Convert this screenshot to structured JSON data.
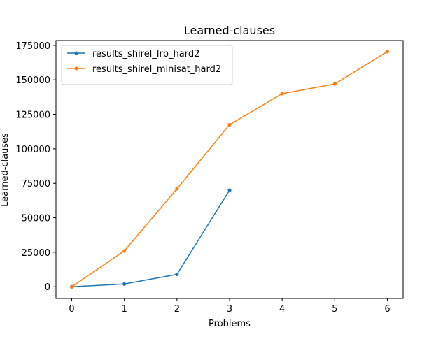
{
  "chart_data": {
    "type": "line",
    "title": "Learned-clauses",
    "xlabel": "Problems",
    "ylabel": "Learned-clauses",
    "x_ticks": [
      0,
      1,
      2,
      3,
      4,
      5,
      6
    ],
    "y_ticks": [
      0,
      25000,
      50000,
      75000,
      100000,
      125000,
      150000,
      175000
    ],
    "xlim": [
      -0.3,
      6.3
    ],
    "ylim": [
      -8500,
      178500
    ],
    "grid": false,
    "legend_position": "top-left",
    "series": [
      {
        "name": "results_shirel_lrb_hard2",
        "color": "#1f77b4",
        "marker": "dot",
        "x": [
          0,
          1,
          2,
          3
        ],
        "y": [
          0,
          2000,
          9000,
          70000
        ]
      },
      {
        "name": "results_shirel_minisat_hard2",
        "color": "#ff7f0e",
        "marker": "dot",
        "x": [
          0,
          1,
          2,
          3,
          4,
          5,
          6
        ],
        "y": [
          0,
          26000,
          71000,
          117500,
          140000,
          147000,
          170500
        ]
      }
    ]
  }
}
